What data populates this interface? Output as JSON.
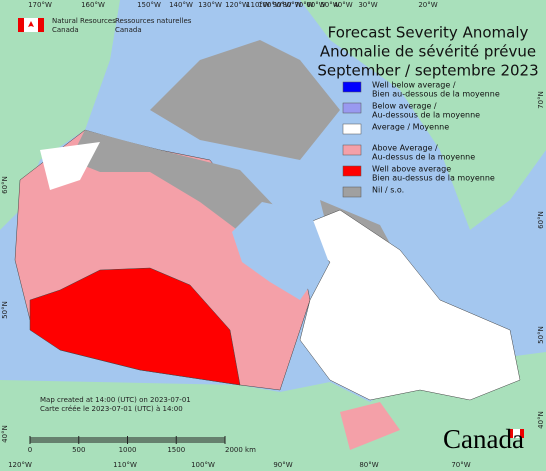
{
  "header": {
    "org_en": [
      "Natural Resources",
      "Canada"
    ],
    "org_fr": [
      "Ressources naturelles",
      "Canada"
    ]
  },
  "title": [
    "Forecast Severity Anomaly",
    "Anomalie de sévérité prévue",
    "September / septembre 2023"
  ],
  "legend": [
    {
      "lines": [
        "Well below average /",
        "Bien au-dessous de la moyenne"
      ],
      "color": "#0000ff"
    },
    {
      "lines": [
        "Below average /",
        "Au-dessous de la moyenne"
      ],
      "color": "#9999f0"
    },
    {
      "lines": [
        "Average / Moyenne"
      ],
      "color": "#ffffff"
    },
    {
      "lines": [
        "Above Average /",
        "Au-dessus de la moyenne"
      ],
      "color": "#f4a0a8"
    },
    {
      "lines": [
        "Well above average",
        "Bien au-dessus de la moyenne"
      ],
      "color": "#ff0000"
    },
    {
      "lines": [
        "Nil / s.o."
      ],
      "color": "#a0a0a0"
    }
  ],
  "graticule": {
    "top": [
      "170°W",
      "160°W",
      "150°W",
      "140°W",
      "130°W",
      "120°W",
      "110°W",
      "100°W",
      "90°W",
      "80°W",
      "70°W",
      "60°W",
      "50°W",
      "40°W",
      "30°W",
      "20°W"
    ],
    "bottom": [
      "120°W",
      "110°W",
      "100°W",
      "90°W",
      "80°W",
      "70°W"
    ],
    "left": [
      "60°N",
      "50°N",
      "40°N"
    ],
    "right": [
      "70°N",
      "60°N",
      "50°N",
      "40°N"
    ]
  },
  "scale": [
    "0",
    "500",
    "1000",
    "1500",
    "2000 km"
  ],
  "notes": [
    "Map created at 14:00 (UTC) on 2023-07-01",
    "Carte créée le 2023-07-01 (UTC) à 14:00"
  ],
  "wordmark": "Canada"
}
